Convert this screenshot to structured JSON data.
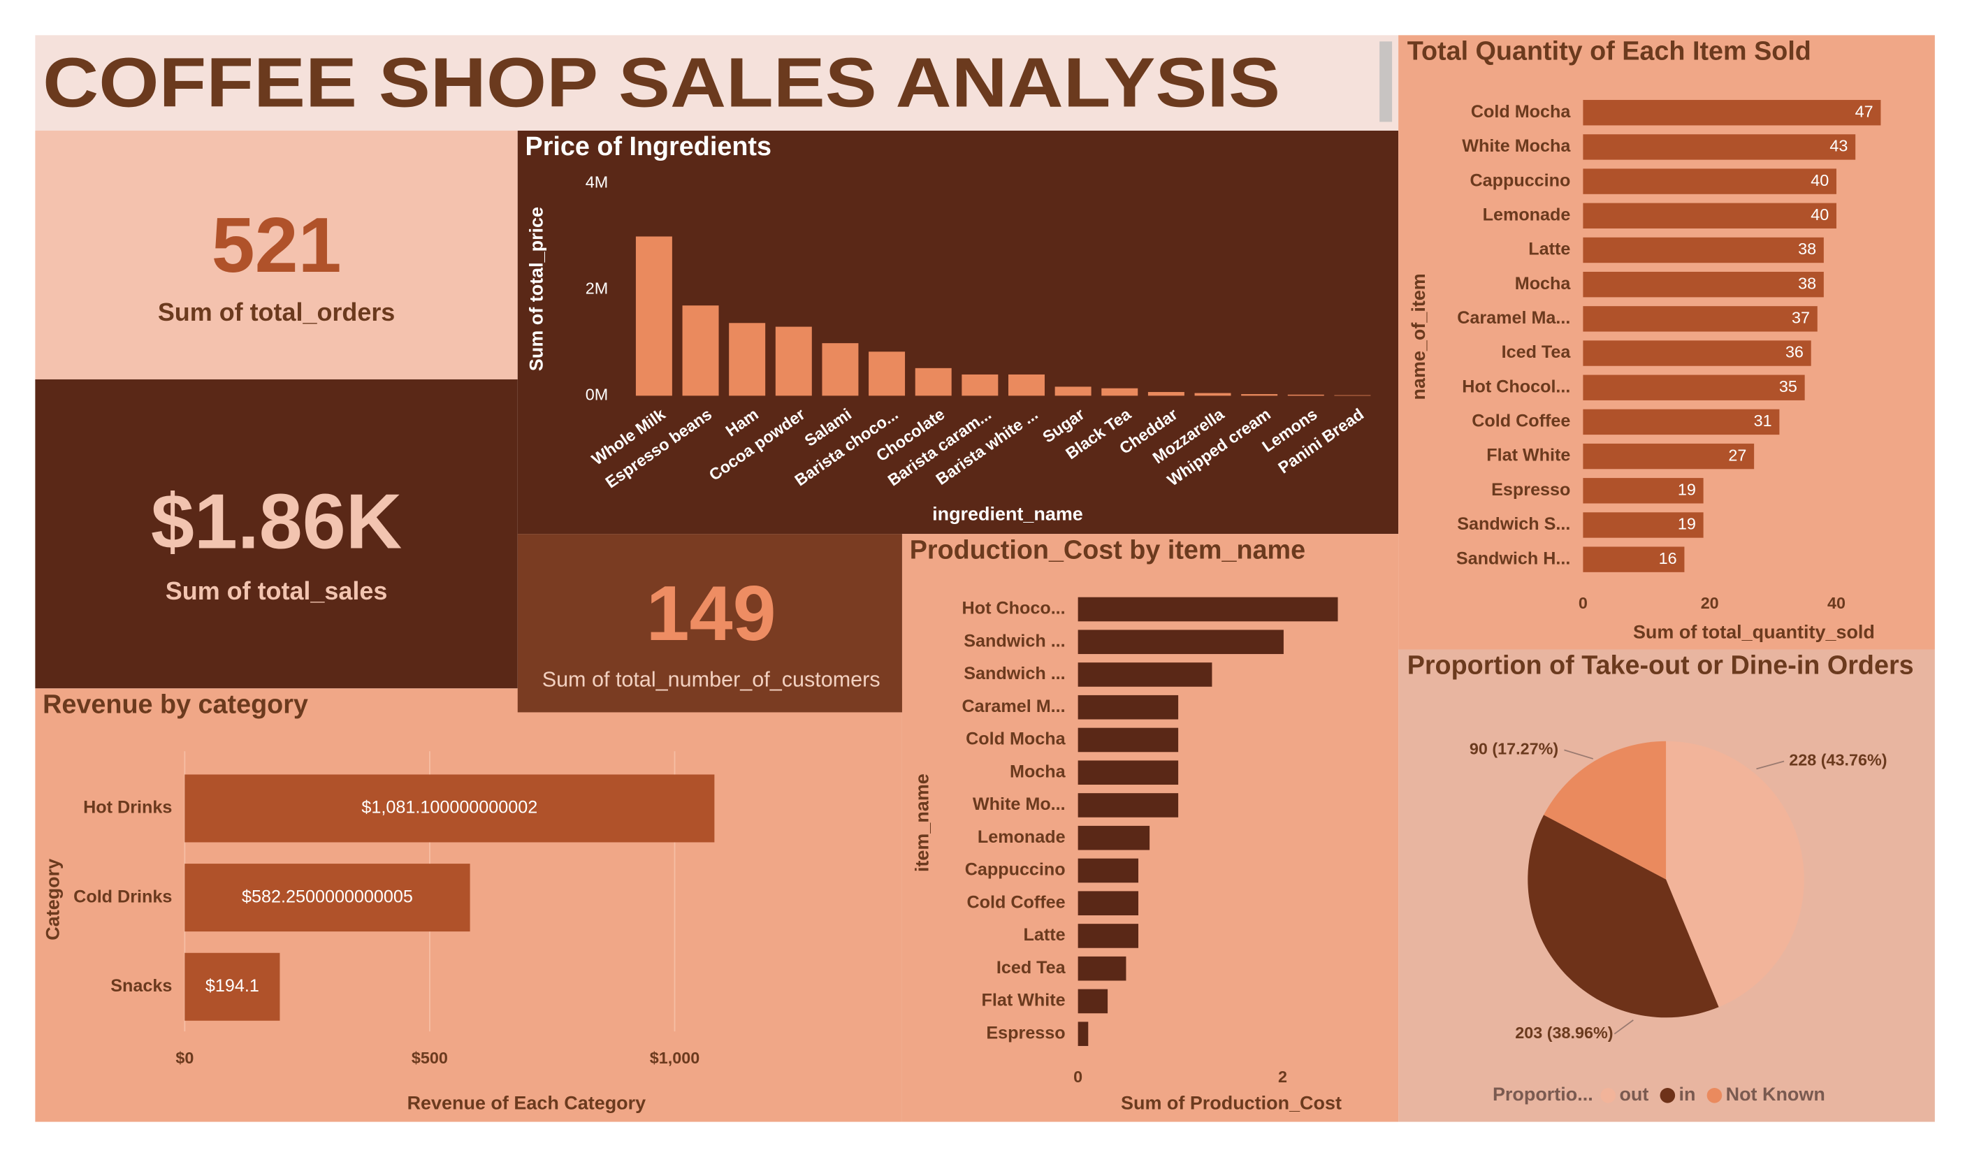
{
  "title": "COFFEE SHOP SALES ANALYSIS",
  "cards": [
    {
      "value": "521",
      "label": "Sum of total_orders"
    },
    {
      "value": "$1.86K",
      "label": "Sum of total_sales"
    },
    {
      "value": "149",
      "label": "Sum of total_number_of_customers"
    }
  ],
  "chart_data": [
    {
      "type": "bar",
      "title": "Price of Ingredients",
      "x_label": "ingredient_name",
      "y_label": "Sum of total_price",
      "color": "#ea8a5e",
      "categories": [
        "Whole Milk",
        "Espresso beans",
        "Ham",
        "Cocoa powder",
        "Salami",
        "Barista choco...",
        "Chocolate",
        "Barista caram...",
        "Barista white ...",
        "Sugar",
        "Black Tea",
        "Cheddar",
        "Mozzarella",
        "Whipped cream",
        "Lemons",
        "Panini Bread"
      ],
      "values": [
        3000000,
        1700000,
        1370000,
        1300000,
        990000,
        830000,
        520000,
        400000,
        400000,
        170000,
        140000,
        70000,
        50000,
        30000,
        20000,
        10000
      ],
      "ylim": [
        0,
        4000000
      ],
      "yticks": [
        {
          "value": 0,
          "label": "0M"
        },
        {
          "value": 2000000,
          "label": "2M"
        },
        {
          "value": 4000000,
          "label": "4M"
        }
      ]
    },
    {
      "type": "hbar",
      "title": "Total Quantity of Each Item Sold",
      "x_label": "Sum of total_quantity_sold",
      "y_label": "name_of_item",
      "color": "#b0522a",
      "data_labels": true,
      "categories": [
        "Cold Mocha",
        "White Mocha",
        "Cappuccino",
        "Lemonade",
        "Latte",
        "Mocha",
        "Caramel Ma...",
        "Iced Tea",
        "Hot Chocol...",
        "Cold Coffee",
        "Flat White",
        "Espresso",
        "Sandwich S...",
        "Sandwich H..."
      ],
      "values": [
        47,
        43,
        40,
        40,
        38,
        38,
        37,
        36,
        35,
        31,
        27,
        19,
        19,
        16
      ],
      "xlim": [
        0,
        48
      ],
      "xticks": [
        0,
        20,
        40
      ]
    },
    {
      "type": "hbar",
      "title": "Revenue by category",
      "x_label": "Revenue of Each Category",
      "y_label": "Category",
      "color": "#b0522a",
      "grid": true,
      "categories": [
        "Hot Drinks",
        "Cold Drinks",
        "Snacks"
      ],
      "values": [
        1081.100000000002,
        582.2500000000005,
        194.1
      ],
      "value_labels": [
        "$1,081.100000000002",
        "$582.2500000000005",
        "$194.1"
      ],
      "xlim": [
        0,
        1400
      ],
      "xticks": [
        {
          "value": 0,
          "label": "$0"
        },
        {
          "value": 500,
          "label": "$500"
        },
        {
          "value": 1000,
          "label": "$1,000"
        }
      ]
    },
    {
      "type": "hbar",
      "title": "Production_Cost by item_name",
      "x_label": "Sum of Production_Cost",
      "y_label": "item_name",
      "color": "#5a2817",
      "categories": [
        "Hot Choco...",
        "Sandwich ...",
        "Sandwich ...",
        "Caramel M...",
        "Cold Mocha",
        "Mocha",
        "White Mo...",
        "Lemonade",
        "Cappuccino",
        "Cold Coffee",
        "Latte",
        "Iced Tea",
        "Flat White",
        "Espresso"
      ],
      "values": [
        2.54,
        2.01,
        1.31,
        0.98,
        0.98,
        0.98,
        0.98,
        0.7,
        0.59,
        0.59,
        0.59,
        0.47,
        0.29,
        0.1
      ],
      "xlim": [
        0,
        2.8
      ],
      "xticks": [
        0,
        2
      ]
    },
    {
      "type": "pie",
      "title": "Proportion of Take-out or Dine-in Orders",
      "legend_title": "Proportio...",
      "categories": [
        "out",
        "in",
        "Not Known"
      ],
      "values": [
        228,
        203,
        90
      ],
      "value_labels": [
        "228 (43.76%)",
        "203 (38.96%)",
        "90 (17.27%)"
      ],
      "colors": [
        "#f2b49a",
        "#6e3219",
        "#ea8a5e"
      ]
    }
  ]
}
